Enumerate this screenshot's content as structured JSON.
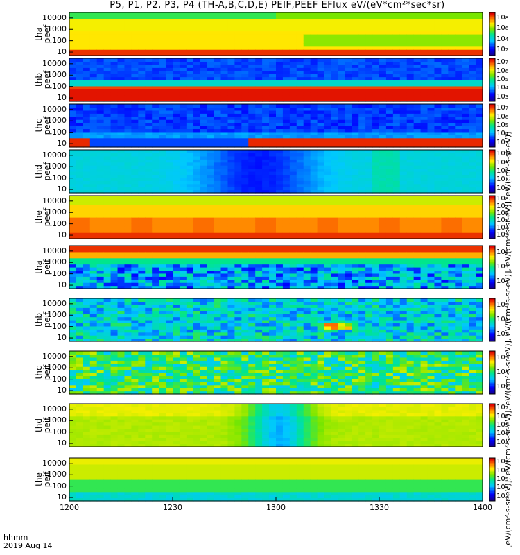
{
  "chart_data": {
    "type": "heatmap",
    "title": "P5, P1, P2, P3, P4 (TH-A,B,C,D,E) PEIF,PEEF EFlux eV/(eV*cm²*sec*sr)",
    "x_axis": {
      "tick_labels": [
        "1200",
        "1230",
        "1300",
        "1330",
        "1400"
      ],
      "time_range": [
        "12:00",
        "14:00"
      ],
      "date": "2019 Aug 14",
      "corner_label": "hhmm"
    },
    "y_axis": {
      "scale": "log",
      "range": [
        5,
        30000
      ],
      "tick_labels": [
        "10",
        "100",
        "1000",
        "10000"
      ]
    },
    "colorbar_label": "[eV/(cm²-s-sr-eV)], eV/(cm²-s-sr-eV)], eV/(cm²-s-sr-eV)], eV/(cm²-s-sr-eV)], eV/(cm²-s-sr-eV)], eV/(cm²-s-sr-eV)]",
    "panels": [
      {
        "probe": "tha",
        "species": "peef",
        "cb_exps": [
          2,
          4,
          6,
          8
        ],
        "desc": "yellow-green, band at low energy"
      },
      {
        "probe": "thb",
        "species": "peef",
        "cb_exps": [
          3,
          4,
          5,
          6,
          7
        ],
        "desc": "blue above, red band below ~50 eV"
      },
      {
        "probe": "thc",
        "species": "peef",
        "cb_exps": [
          3,
          4,
          5,
          6,
          7
        ],
        "desc": "blue above, red band near 10 eV"
      },
      {
        "probe": "thd",
        "species": "peef",
        "cb_exps": [
          6,
          7,
          8,
          9,
          10
        ],
        "desc": "cyan with blue dip mid-interval"
      },
      {
        "probe": "the",
        "species": "peef",
        "cb_exps": [
          3,
          4,
          5,
          6,
          7,
          8
        ],
        "desc": "yellow/orange with red band"
      },
      {
        "probe": "tha",
        "species": "peif",
        "cb_exps": [
          4,
          5,
          6
        ],
        "desc": "red at high energy, noisy blue below"
      },
      {
        "probe": "thb",
        "species": "peif",
        "cb_exps": [
          3,
          4,
          5
        ],
        "desc": "noisy blue/cyan"
      },
      {
        "probe": "thc",
        "species": "peif",
        "cb_exps": [
          3,
          4,
          5
        ],
        "desc": "noisy cyan/green"
      },
      {
        "probe": "thd",
        "species": "peif",
        "cb_exps": [
          3,
          4,
          5,
          6,
          7
        ],
        "desc": "yellow-green with blue column"
      },
      {
        "probe": "the",
        "species": "peif",
        "cb_exps": [
          3,
          4,
          5,
          6,
          7
        ],
        "desc": "yellow/green, blue at low energy"
      }
    ]
  }
}
